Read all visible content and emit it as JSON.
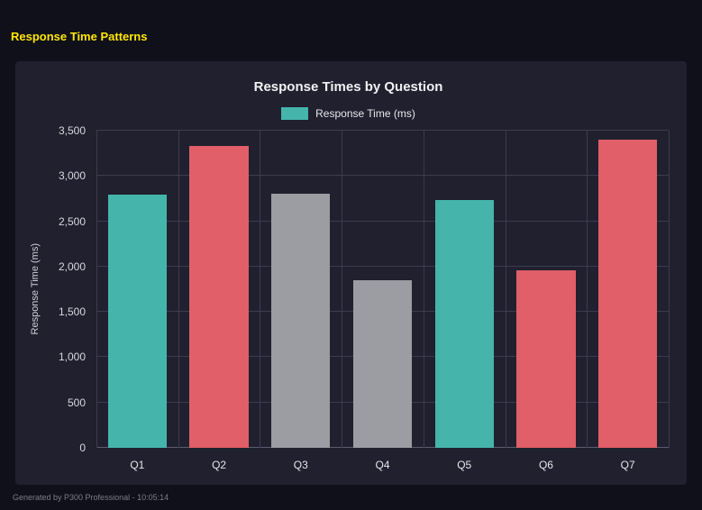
{
  "page": {
    "title": "Response Time Patterns",
    "footer": "Generated by P300 Professional - 10:05:14"
  },
  "chart_data": {
    "type": "bar",
    "title": "Response Times by Question",
    "legend": [
      {
        "label": "Response Time (ms)",
        "color": "#45b5ab"
      }
    ],
    "categories": [
      "Q1",
      "Q2",
      "Q3",
      "Q4",
      "Q5",
      "Q6",
      "Q7"
    ],
    "values": [
      2790,
      3330,
      2800,
      1850,
      2730,
      1960,
      3400
    ],
    "bar_colors": [
      "#45b5ab",
      "#e05f68",
      "#9c9ca3",
      "#9c9ca3",
      "#45b5ab",
      "#e05f68",
      "#e05f68"
    ],
    "xlabel": "",
    "ylabel": "Response Time (ms)",
    "ylim": [
      0,
      3500
    ],
    "ytick_step": 500,
    "ytick_labels": [
      "0",
      "500",
      "1,000",
      "1,500",
      "2,000",
      "2,500",
      "3,000",
      "3,500"
    ],
    "grid": true,
    "legend_position": "top"
  }
}
